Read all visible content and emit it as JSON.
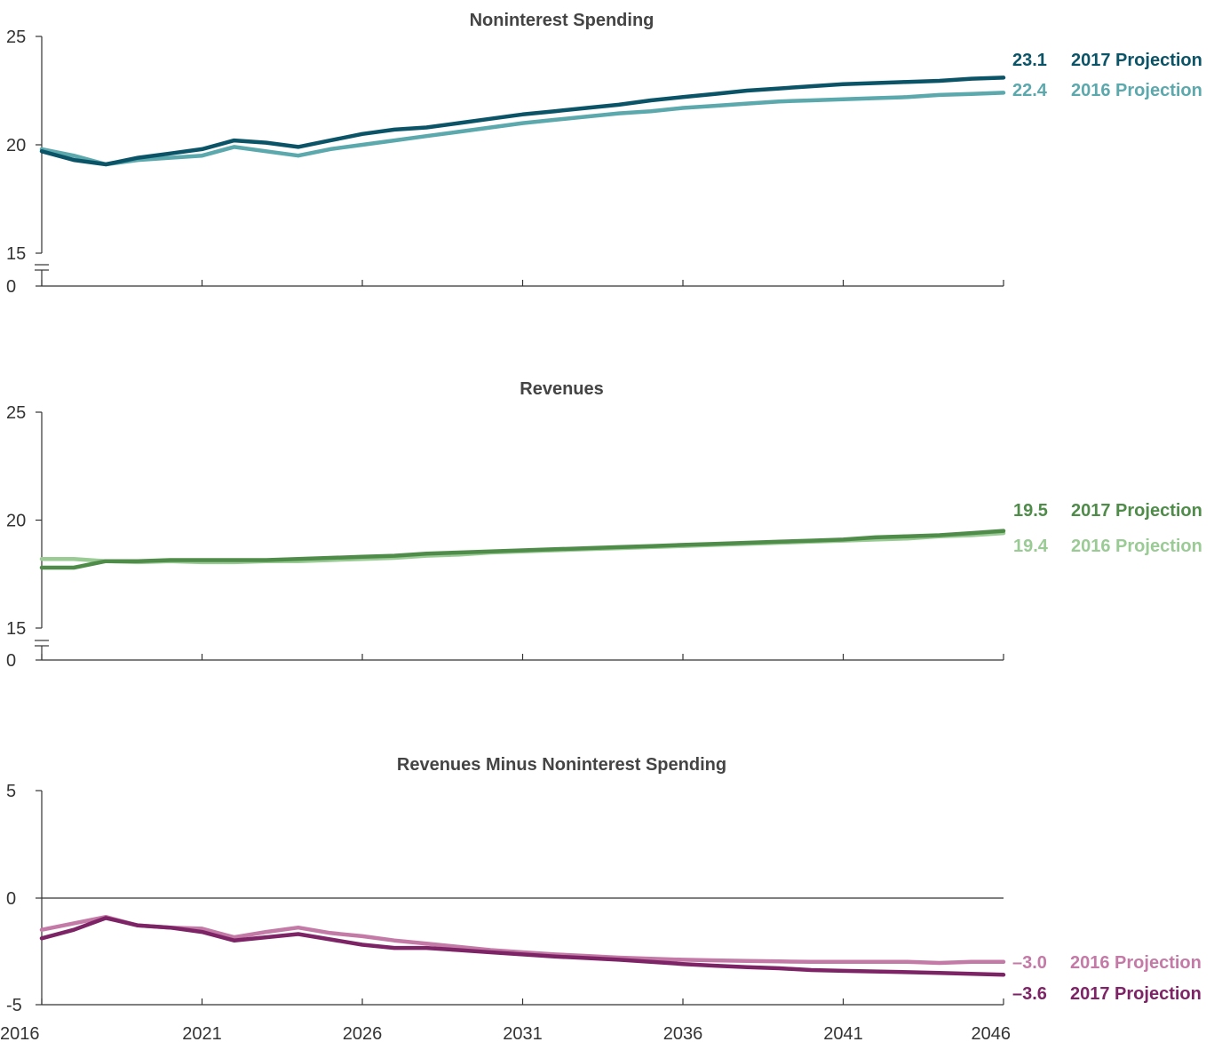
{
  "chart_data": [
    {
      "type": "line",
      "title": "Noninterest Spending",
      "x": [
        2016,
        2017,
        2018,
        2019,
        2020,
        2021,
        2022,
        2023,
        2024,
        2025,
        2026,
        2027,
        2028,
        2029,
        2030,
        2031,
        2032,
        2033,
        2034,
        2035,
        2036,
        2037,
        2038,
        2039,
        2040,
        2041,
        2042,
        2043,
        2044,
        2045,
        2046
      ],
      "x_ticks": [
        "2016",
        "2021",
        "2026",
        "2031",
        "2036",
        "2041",
        "2046"
      ],
      "y_ticks": [
        "25",
        "20",
        "15",
        "0"
      ],
      "ylim": [
        15,
        25
      ],
      "axis_break": true,
      "series": [
        {
          "name": "2016 Projection",
          "color": "#5ba8ad",
          "end_label": "22.4",
          "values": [
            19.8,
            19.5,
            19.1,
            19.3,
            19.4,
            19.5,
            19.9,
            19.7,
            19.5,
            19.8,
            20.0,
            20.2,
            20.4,
            20.6,
            20.8,
            21.0,
            21.15,
            21.3,
            21.45,
            21.55,
            21.7,
            21.8,
            21.9,
            22.0,
            22.05,
            22.1,
            22.15,
            22.2,
            22.3,
            22.35,
            22.4
          ]
        },
        {
          "name": "2017 Projection",
          "color": "#0b5468",
          "end_label": "23.1",
          "values": [
            19.7,
            19.3,
            19.1,
            19.4,
            19.6,
            19.8,
            20.2,
            20.1,
            19.9,
            20.2,
            20.5,
            20.7,
            20.8,
            21.0,
            21.2,
            21.4,
            21.55,
            21.7,
            21.85,
            22.05,
            22.2,
            22.35,
            22.5,
            22.6,
            22.7,
            22.8,
            22.85,
            22.9,
            22.95,
            23.05,
            23.1
          ]
        }
      ]
    },
    {
      "type": "line",
      "title": "Revenues",
      "x": [
        2016,
        2017,
        2018,
        2019,
        2020,
        2021,
        2022,
        2023,
        2024,
        2025,
        2026,
        2027,
        2028,
        2029,
        2030,
        2031,
        2032,
        2033,
        2034,
        2035,
        2036,
        2037,
        2038,
        2039,
        2040,
        2041,
        2042,
        2043,
        2044,
        2045,
        2046
      ],
      "x_ticks": [
        "2016",
        "2021",
        "2026",
        "2031",
        "2036",
        "2041",
        "2046"
      ],
      "y_ticks": [
        "25",
        "20",
        "15",
        "0"
      ],
      "ylim": [
        15,
        25
      ],
      "axis_break": true,
      "series": [
        {
          "name": "2016 Projection",
          "color": "#9acb95",
          "end_label": "19.4",
          "values": [
            18.2,
            18.2,
            18.1,
            18.05,
            18.1,
            18.05,
            18.05,
            18.1,
            18.1,
            18.15,
            18.2,
            18.25,
            18.35,
            18.4,
            18.5,
            18.55,
            18.6,
            18.65,
            18.7,
            18.75,
            18.8,
            18.85,
            18.9,
            18.95,
            19.0,
            19.05,
            19.1,
            19.15,
            19.25,
            19.3,
            19.4
          ]
        },
        {
          "name": "2017 Projection",
          "color": "#4f8c4a",
          "end_label": "19.5",
          "values": [
            17.8,
            17.8,
            18.1,
            18.1,
            18.15,
            18.15,
            18.15,
            18.15,
            18.2,
            18.25,
            18.3,
            18.35,
            18.45,
            18.5,
            18.55,
            18.6,
            18.65,
            18.7,
            18.75,
            18.8,
            18.85,
            18.9,
            18.95,
            19.0,
            19.05,
            19.1,
            19.2,
            19.25,
            19.3,
            19.4,
            19.5
          ]
        }
      ]
    },
    {
      "type": "line",
      "title": "Revenues Minus Noninterest Spending",
      "x": [
        2016,
        2017,
        2018,
        2019,
        2020,
        2021,
        2022,
        2023,
        2024,
        2025,
        2026,
        2027,
        2028,
        2029,
        2030,
        2031,
        2032,
        2033,
        2034,
        2035,
        2036,
        2037,
        2038,
        2039,
        2040,
        2041,
        2042,
        2043,
        2044,
        2045,
        2046
      ],
      "x_ticks": [
        "2016",
        "2021",
        "2026",
        "2031",
        "2036",
        "2041",
        "2046"
      ],
      "y_ticks": [
        "5",
        "0",
        "-5"
      ],
      "ylim": [
        -5,
        5
      ],
      "zero_line": true,
      "series": [
        {
          "name": "2016 Projection",
          "color": "#c47aa6",
          "end_label": "–3.0",
          "values": [
            -1.5,
            -1.2,
            -0.9,
            -1.3,
            -1.4,
            -1.45,
            -1.85,
            -1.6,
            -1.4,
            -1.65,
            -1.8,
            -2.0,
            -2.15,
            -2.3,
            -2.45,
            -2.55,
            -2.65,
            -2.72,
            -2.8,
            -2.85,
            -2.9,
            -2.93,
            -2.96,
            -2.98,
            -3.0,
            -3.0,
            -3.0,
            -3.0,
            -3.05,
            -3.0,
            -3.0
          ]
        },
        {
          "name": "2017 Projection",
          "color": "#7d2466",
          "end_label": "–3.6",
          "values": [
            -1.9,
            -1.5,
            -0.95,
            -1.3,
            -1.4,
            -1.6,
            -2.0,
            -1.85,
            -1.7,
            -1.95,
            -2.2,
            -2.35,
            -2.35,
            -2.45,
            -2.55,
            -2.65,
            -2.75,
            -2.82,
            -2.9,
            -3.0,
            -3.1,
            -3.18,
            -3.25,
            -3.3,
            -3.38,
            -3.42,
            -3.45,
            -3.48,
            -3.52,
            -3.56,
            -3.6
          ]
        }
      ]
    }
  ]
}
